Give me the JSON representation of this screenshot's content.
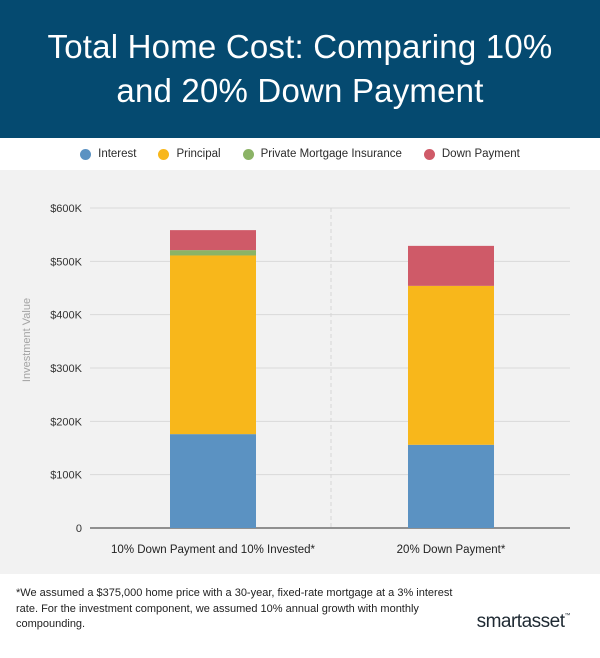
{
  "header": {
    "title_line1": "Total Home Cost: Comparing 10%",
    "title_line2": "and 20% Down Payment"
  },
  "colors": {
    "header_bg": "#054a70",
    "interest": "#5b92c2",
    "principal": "#f8b71b",
    "pmi": "#8bb366",
    "down_payment": "#cf5a68"
  },
  "chart_data": {
    "type": "bar",
    "stacked": true,
    "title": "Total Home Cost: Comparing 10% and 20% Down Payment",
    "xlabel": "",
    "ylabel": "Investment Value",
    "ylim": [
      0,
      600000
    ],
    "yticks": [
      0,
      100000,
      200000,
      300000,
      400000,
      500000,
      600000
    ],
    "ytick_labels": [
      "0",
      "$100K",
      "$200K",
      "$300K",
      "$400K",
      "$500K",
      "$600K"
    ],
    "grid": true,
    "legend_position": "top",
    "categories": [
      "10% Down Payment and 10% Invested*",
      "20% Down Payment*"
    ],
    "series": [
      {
        "name": "Interest",
        "values": [
          176000,
          156000
        ],
        "color": "#5b92c2"
      },
      {
        "name": "Principal",
        "values": [
          335000,
          298000
        ],
        "color": "#f8b71b"
      },
      {
        "name": "Private Mortgage Insurance",
        "values": [
          10000,
          0
        ],
        "color": "#8bb366"
      },
      {
        "name": "Down Payment",
        "values": [
          37500,
          75000
        ],
        "color": "#cf5a68"
      }
    ]
  },
  "footnote": {
    "text": "*We assumed a $375,000 home price with a 30-year, fixed-rate mortgage at a 3% interest rate. For the investment component, we assumed 10% annual growth with monthly compounding."
  },
  "brand": {
    "name": "smartasset",
    "mark": "™"
  }
}
